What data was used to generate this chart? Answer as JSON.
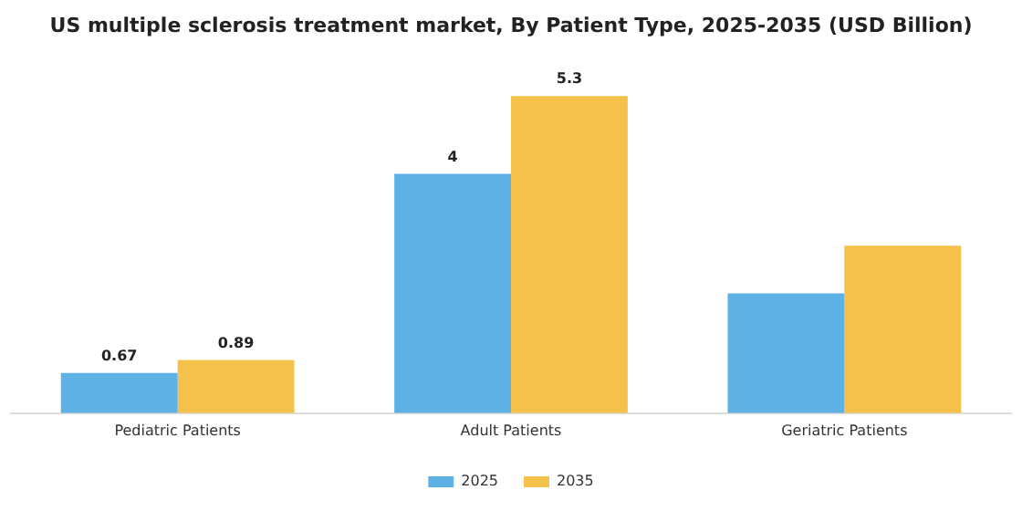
{
  "chart_data": {
    "type": "bar",
    "title": "US multiple sclerosis treatment market, By Patient Type, 2025-2035 (USD Billion)",
    "categories": [
      "Pediatric Patients",
      "Adult Patients",
      "Geriatric Patients"
    ],
    "series": [
      {
        "name": "2025",
        "color": "#5db1e4",
        "values": [
          0.67,
          4,
          2.0
        ],
        "value_labels": [
          "0.67",
          "4",
          null
        ]
      },
      {
        "name": "2035",
        "color": "#f6c14b",
        "values": [
          0.89,
          5.3,
          2.8
        ],
        "value_labels": [
          "0.89",
          "5.3",
          null
        ]
      }
    ],
    "legend": "bottom",
    "grid": false
  }
}
